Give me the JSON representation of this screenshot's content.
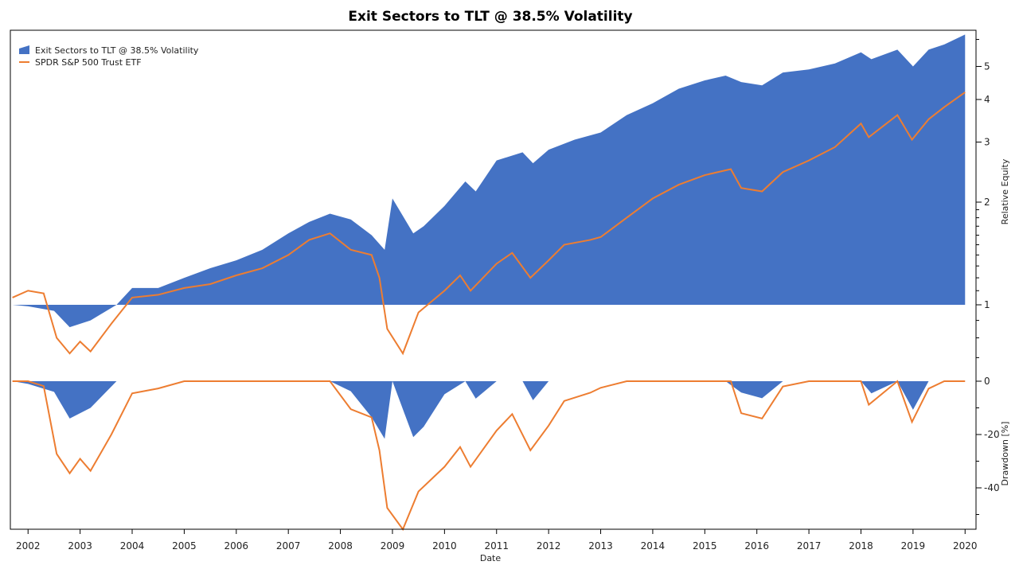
{
  "chart_data": {
    "type": "area",
    "title": "Exit Sectors to TLT @ 38.5% Volatility",
    "xlabel": "Date",
    "ylabel_top": "Relative Equity",
    "ylabel_bottom": "Drawdown [%]",
    "xlim": [
      2001.66,
      2020.21
    ],
    "x_ticks": [
      "2002",
      "2003",
      "2004",
      "2005",
      "2006",
      "2007",
      "2008",
      "2009",
      "2010",
      "2011",
      "2012",
      "2013",
      "2014",
      "2015",
      "2016",
      "2017",
      "2018",
      "2019",
      "2020"
    ],
    "equity_axis": {
      "scale": "log",
      "range": [
        0.64,
        6.4
      ],
      "ticks": [
        "1",
        "2",
        "3",
        "4",
        "5"
      ]
    },
    "drawdown_axis": {
      "range": [
        -55.5,
        0
      ],
      "ticks": [
        "0",
        "-20",
        "-40"
      ]
    },
    "legend_position": "top-left",
    "grid": false,
    "colors": {
      "strategy": "#4472C4",
      "benchmark": "#ED7D31"
    },
    "series": [
      {
        "name": "Exit Sectors to TLT @ 38.5% Volatility",
        "style": "filled area",
        "x": [
          2001.7,
          2002.0,
          2002.5,
          2002.8,
          2003.2,
          2003.7,
          2004.0,
          2004.5,
          2005.0,
          2005.5,
          2006.0,
          2006.5,
          2007.0,
          2007.4,
          2007.8,
          2008.2,
          2008.6,
          2008.85,
          2009.0,
          2009.4,
          2009.6,
          2010.0,
          2010.4,
          2010.6,
          2011.0,
          2011.5,
          2011.7,
          2012.0,
          2012.5,
          2013.0,
          2013.5,
          2014.0,
          2014.5,
          2015.0,
          2015.4,
          2015.7,
          2016.1,
          2016.5,
          2017.0,
          2017.5,
          2018.0,
          2018.2,
          2018.7,
          2019.0,
          2019.3,
          2019.6,
          2020.0
        ],
        "values": [
          1.0,
          0.99,
          0.96,
          0.86,
          0.9,
          1.0,
          1.12,
          1.12,
          1.2,
          1.28,
          1.35,
          1.45,
          1.62,
          1.75,
          1.85,
          1.78,
          1.6,
          1.45,
          2.05,
          1.62,
          1.7,
          1.95,
          2.3,
          2.15,
          2.65,
          2.8,
          2.6,
          2.85,
          3.05,
          3.2,
          3.6,
          3.9,
          4.3,
          4.55,
          4.7,
          4.5,
          4.4,
          4.8,
          4.9,
          5.1,
          5.5,
          5.25,
          5.6,
          5.0,
          5.6,
          5.8,
          6.2
        ]
      },
      {
        "name": "SPDR S&P 500 Trust ETF",
        "style": "line",
        "x": [
          2001.7,
          2002.0,
          2002.3,
          2002.55,
          2002.8,
          2003.0,
          2003.2,
          2003.6,
          2004.0,
          2004.5,
          2005.0,
          2005.5,
          2006.0,
          2006.5,
          2007.0,
          2007.4,
          2007.8,
          2008.2,
          2008.6,
          2008.75,
          2008.9,
          2009.2,
          2009.5,
          2010.0,
          2010.3,
          2010.5,
          2011.0,
          2011.3,
          2011.65,
          2012.0,
          2012.3,
          2012.8,
          2013.0,
          2013.5,
          2014.0,
          2014.5,
          2015.0,
          2015.5,
          2015.7,
          2016.1,
          2016.5,
          2017.0,
          2017.5,
          2018.0,
          2018.15,
          2018.7,
          2018.98,
          2019.3,
          2019.6,
          2020.0
        ],
        "values": [
          1.05,
          1.1,
          1.08,
          0.8,
          0.72,
          0.78,
          0.73,
          0.88,
          1.05,
          1.07,
          1.12,
          1.15,
          1.22,
          1.28,
          1.4,
          1.55,
          1.62,
          1.45,
          1.4,
          1.2,
          0.85,
          0.72,
          0.95,
          1.1,
          1.22,
          1.1,
          1.32,
          1.42,
          1.2,
          1.35,
          1.5,
          1.55,
          1.58,
          1.8,
          2.05,
          2.25,
          2.4,
          2.5,
          2.2,
          2.15,
          2.45,
          2.65,
          2.9,
          3.4,
          3.1,
          3.6,
          3.05,
          3.5,
          3.8,
          4.2
        ]
      }
    ]
  }
}
